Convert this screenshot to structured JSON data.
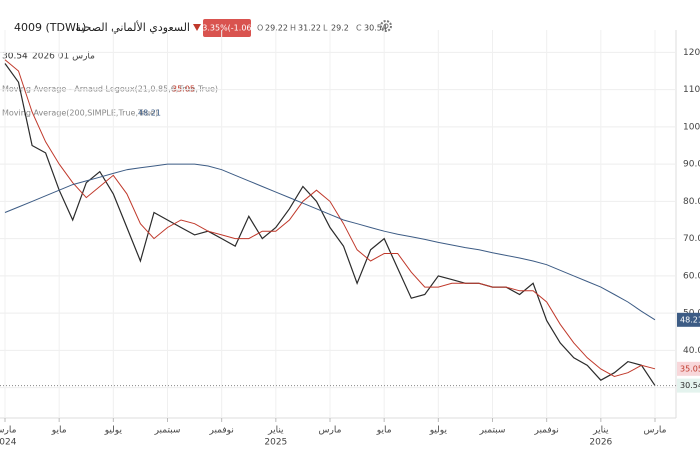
{
  "header": {
    "symbol": "4009 (TDWL)",
    "name": "السعودي الألماني الصحية",
    "change": "-3.35%(-1.06)",
    "ohlc": [
      {
        "label": "O",
        "value": 29.22
      },
      {
        "label": "H",
        "value": 31.22
      },
      {
        "label": "L",
        "value": 29.2
      },
      {
        "label": "C",
        "value": 30.54
      }
    ],
    "date": "مارس 01 2026"
  },
  "chart_data": {
    "type": "line",
    "categories": [
      "مارس",
      null,
      null,
      null,
      "مايو",
      null,
      null,
      null,
      "يوليو",
      null,
      null,
      null,
      "سبتمبر",
      null,
      null,
      null,
      "نوفمبر",
      null,
      null,
      null,
      "يناير",
      null,
      null,
      null,
      "مارس",
      null,
      null,
      null,
      "مايو",
      null,
      null,
      null,
      "يوليو",
      null,
      null,
      null,
      "سبتمبر",
      null,
      null,
      null,
      "نوفمبر",
      null,
      null,
      null,
      "يناير",
      null,
      null,
      null,
      "مارس"
    ],
    "year_labels": [
      "2024",
      null,
      null,
      null,
      null,
      null,
      null,
      null,
      null,
      null,
      null,
      null,
      null,
      null,
      null,
      null,
      null,
      null,
      null,
      null,
      "2025",
      null,
      null,
      null,
      null,
      null,
      null,
      null,
      null,
      null,
      null,
      null,
      null,
      null,
      null,
      null,
      null,
      null,
      null,
      null,
      null,
      null,
      null,
      null,
      "2026",
      null,
      null,
      null,
      null
    ],
    "series": [
      {
        "color": "#2b2b2b",
        "values": [
          117,
          112,
          95,
          93,
          83,
          75,
          85,
          88,
          82,
          73,
          64,
          77,
          75,
          73,
          71,
          72,
          70,
          68,
          76,
          70,
          73,
          78,
          84,
          80,
          73,
          68,
          58,
          67,
          70,
          62,
          54,
          55,
          60,
          59,
          58,
          58,
          57,
          57,
          55,
          58,
          48,
          42,
          38,
          36,
          32,
          34,
          37,
          36,
          30.54
        ]
      },
      {
        "name": "Moving Average - Arnaud Legoux(21,0.85,6,True,True)",
        "color": "#c0392b",
        "values": [
          118,
          115,
          104,
          96,
          90,
          85,
          81,
          84,
          87,
          82,
          74,
          70,
          73,
          75,
          74,
          72,
          71,
          70,
          70,
          72,
          72,
          75,
          80,
          83,
          80,
          74,
          67,
          64,
          66,
          66,
          61,
          57,
          57,
          58,
          58,
          58,
          57,
          57,
          56,
          56,
          53,
          47,
          42,
          38,
          35,
          33,
          34,
          36,
          35.05
        ]
      },
      {
        "name": "Moving Average(200,SIMPLE,True,True)",
        "color": "#3d5c85",
        "values": [
          77,
          78.5,
          80,
          81.5,
          83,
          84.5,
          85.5,
          86.5,
          87.5,
          88.5,
          89,
          89.5,
          90,
          90,
          90,
          89.5,
          88.5,
          87,
          85.5,
          84,
          82.5,
          81,
          79.5,
          78,
          76.5,
          75,
          74,
          73,
          72,
          71.2,
          70.5,
          69.8,
          69,
          68.3,
          67.6,
          67,
          66.2,
          65.5,
          64.8,
          64,
          63,
          61.5,
          60,
          58.5,
          57,
          55,
          53,
          50.5,
          48.21
        ]
      }
    ],
    "ylim": [
      24,
      126
    ],
    "yticks": [
      {
        "value": 30,
        "label": "30.0"
      },
      {
        "value": 40,
        "label": "40.0"
      },
      {
        "value": 50,
        "label": "50.0"
      },
      {
        "value": 60,
        "label": "60.0"
      },
      {
        "value": 70,
        "label": "70.0"
      },
      {
        "value": 80,
        "label": "80.0"
      },
      {
        "value": 90,
        "label": "90.0"
      },
      {
        "value": 100,
        "label": "100.0"
      },
      {
        "value": 110,
        "label": "110.0"
      },
      {
        "value": 120,
        "label": "120.0"
      }
    ],
    "grid": true
  }
}
